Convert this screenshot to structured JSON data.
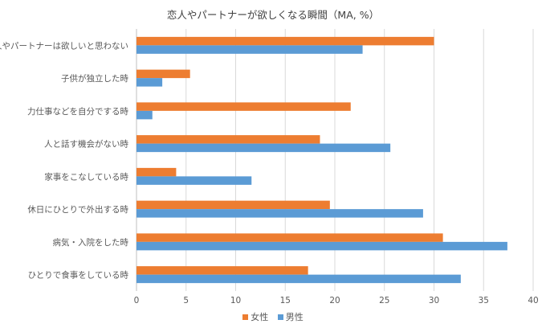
{
  "chart_data": {
    "type": "bar",
    "orientation": "horizontal",
    "title": "恋人やパートナーが欲しくなる瞬間（MA, %）",
    "categories": [
      "恋人やパートナーは欲しいと思わない",
      "子供が独立した時",
      "力仕事などを自分でする時",
      "人と話す機会がない時",
      "家事をこなしている時",
      "休日にひとりで外出する時",
      "病気・入院をした時",
      "ひとりで食事をしている時"
    ],
    "series": [
      {
        "name": "女性",
        "color": "#ED7D31",
        "values": [
          30.0,
          5.4,
          21.6,
          18.5,
          4.0,
          19.5,
          30.9,
          17.3
        ]
      },
      {
        "name": "男性",
        "color": "#5B9BD5",
        "values": [
          22.8,
          2.6,
          1.6,
          25.6,
          11.6,
          28.9,
          37.4,
          32.7
        ]
      }
    ],
    "xlim": [
      0,
      40
    ],
    "xticks": [
      "0",
      "5",
      "10",
      "15",
      "20",
      "25",
      "30",
      "35",
      "40"
    ],
    "grid": true,
    "legend_position": "bottom",
    "colors": {
      "grid": "#D9D9D9",
      "axis": "#BFBFBF",
      "text": "#595959"
    }
  }
}
